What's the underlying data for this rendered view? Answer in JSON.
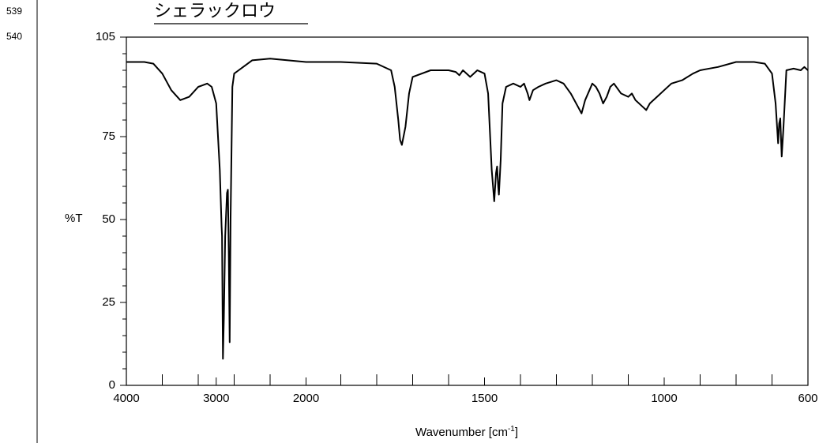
{
  "line_numbers": [
    "539",
    "540"
  ],
  "heading": "シェラックロウ",
  "chart_data": {
    "type": "line",
    "y_label": "%T",
    "x_label": [
      "Wavenumber [cm",
      "-1",
      "]"
    ],
    "color": "#000000",
    "x": [
      4000,
      3800,
      3700,
      3600,
      3500,
      3400,
      3300,
      3200,
      3100,
      3050,
      3000,
      2960,
      2940,
      2935,
      2925,
      2915,
      2900,
      2880,
      2870,
      2860,
      2850,
      2840,
      2820,
      2800,
      2750,
      2700,
      2600,
      2400,
      2200,
      2000,
      1900,
      1800,
      1760,
      1750,
      1740,
      1735,
      1730,
      1720,
      1710,
      1700,
      1650,
      1600,
      1580,
      1570,
      1560,
      1540,
      1520,
      1500,
      1490,
      1480,
      1473,
      1468,
      1465,
      1462,
      1460,
      1455,
      1450,
      1440,
      1420,
      1400,
      1390,
      1380,
      1375,
      1365,
      1350,
      1330,
      1300,
      1280,
      1260,
      1240,
      1230,
      1220,
      1200,
      1190,
      1180,
      1170,
      1160,
      1150,
      1140,
      1120,
      1100,
      1090,
      1080,
      1060,
      1050,
      1040,
      1020,
      1000,
      980,
      950,
      920,
      900,
      850,
      800,
      750,
      720,
      700,
      690,
      683,
      680,
      677,
      673,
      668,
      660,
      640,
      620,
      610,
      600
    ],
    "values": [
      97.5,
      97.5,
      97,
      94,
      89,
      86,
      87,
      90,
      91,
      90,
      85,
      65,
      48,
      45,
      8,
      20,
      45,
      58,
      59,
      40,
      13,
      50,
      90,
      94,
      95,
      96,
      98,
      98.5,
      98,
      97.5,
      97.5,
      97,
      95,
      90,
      80,
      74,
      72.5,
      78,
      88,
      93,
      95,
      95,
      94.5,
      93.5,
      95,
      93,
      95,
      94,
      88,
      65,
      55.5,
      64,
      66,
      60,
      57.5,
      68,
      85,
      90,
      91,
      90,
      91,
      88,
      86,
      89,
      90,
      91,
      92,
      91,
      88,
      84,
      82,
      86,
      91,
      90,
      88,
      85,
      87,
      90,
      91,
      88,
      87,
      88,
      86,
      84,
      83,
      85,
      87,
      89,
      91,
      92,
      94,
      95,
      96,
      97.5,
      97.5,
      97,
      94,
      85,
      73,
      79,
      80.5,
      69,
      78,
      95,
      95.5,
      95,
      96,
      95
    ],
    "xlim": [
      4000,
      600
    ],
    "xticks": [
      4000,
      3000,
      2000,
      1500,
      1000,
      600
    ],
    "xticks_minor": [
      3600,
      3200,
      2800,
      2400,
      1900,
      1800,
      1700,
      1600,
      1400,
      1300,
      1200,
      1100,
      900,
      800,
      700
    ],
    "ylim": [
      0,
      105
    ],
    "yticks": [
      0,
      25,
      50,
      75,
      105
    ],
    "yticks_minor": [
      5,
      10,
      15,
      20,
      30,
      35,
      40,
      45,
      55,
      60,
      65,
      70,
      80,
      85,
      90,
      95,
      100
    ]
  }
}
